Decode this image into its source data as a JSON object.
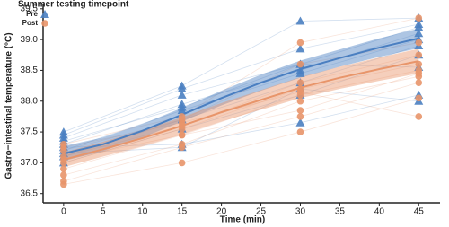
{
  "chart_data": {
    "type": "scatter",
    "legend_title": "Summer testing timepoint",
    "x_label": "Time (min)",
    "y_label": "Gastro−intestinal temperature (°C)",
    "xlim": [
      -2.6,
      47.7
    ],
    "ylim": [
      36.35,
      39.57
    ],
    "xticks": [
      0,
      5,
      10,
      15,
      20,
      25,
      30,
      35,
      40,
      45
    ],
    "yticks": [
      36.5,
      {
        "value": 37,
        "label": "37.0"
      },
      37.5,
      {
        "value": 38,
        "label": "38.0"
      },
      38.5,
      {
        "value": 39,
        "label": "39.0"
      },
      39.5
    ],
    "times": [
      0,
      15,
      30,
      45
    ],
    "curve_x": [
      0,
      5,
      10,
      15,
      20,
      25,
      30,
      35,
      40,
      45
    ],
    "legend": "top-left",
    "series": [
      {
        "name": "Pre",
        "color": "#4a7fc1",
        "marker": "triangle",
        "subjects": [
          [
            37.5,
            38.25,
            39.3,
            39.35
          ],
          [
            37.45,
            38.2,
            38.85,
            39.25
          ],
          [
            37.4,
            38.1,
            38.6,
            39.2
          ],
          [
            37.3,
            37.95,
            38.5,
            39.1
          ],
          [
            37.2,
            37.85,
            38.45,
            39.0
          ],
          [
            37.1,
            37.7,
            38.3,
            38.9
          ],
          [
            37.0,
            37.55,
            38.1,
            38.75
          ],
          [
            37.35,
            37.9,
            38.6,
            38.55
          ],
          [
            37.25,
            37.3,
            37.65,
            38.1
          ],
          [
            37.15,
            37.25,
            38.2,
            38.0
          ]
        ],
        "mean": [
          37.15,
          37.3,
          37.52,
          37.78,
          38.05,
          38.3,
          38.52,
          38.7,
          38.87,
          39.02
        ],
        "lower": [
          37.03,
          37.19,
          37.41,
          37.67,
          37.93,
          38.17,
          38.38,
          38.56,
          38.72,
          38.86
        ],
        "upper": [
          37.27,
          37.41,
          37.63,
          37.89,
          38.17,
          38.43,
          38.66,
          38.84,
          39.02,
          39.18
        ]
      },
      {
        "name": "Post",
        "color": "#e8956a",
        "marker": "circle",
        "subjects": [
          [
            37.3,
            37.75,
            38.95,
            39.35
          ],
          [
            37.2,
            37.7,
            38.6,
            38.95
          ],
          [
            37.1,
            37.6,
            38.3,
            38.75
          ],
          [
            37.0,
            37.55,
            38.2,
            38.6
          ],
          [
            36.9,
            37.45,
            38.1,
            38.5
          ],
          [
            36.8,
            37.3,
            38.0,
            38.4
          ],
          [
            36.7,
            37.25,
            37.75,
            38.3
          ],
          [
            36.65,
            37.0,
            37.5,
            38.05
          ],
          [
            37.25,
            37.65,
            38.15,
            37.75
          ],
          [
            37.05,
            37.45,
            37.85,
            38.45
          ]
        ],
        "mean": [
          37.05,
          37.22,
          37.4,
          37.6,
          37.82,
          38.02,
          38.22,
          38.38,
          38.52,
          38.65
        ],
        "lower": [
          36.93,
          37.1,
          37.27,
          37.46,
          37.67,
          37.86,
          38.05,
          38.2,
          38.33,
          38.45
        ],
        "upper": [
          37.17,
          37.34,
          37.53,
          37.74,
          37.97,
          38.18,
          38.39,
          38.56,
          38.71,
          38.85
        ]
      }
    ]
  }
}
